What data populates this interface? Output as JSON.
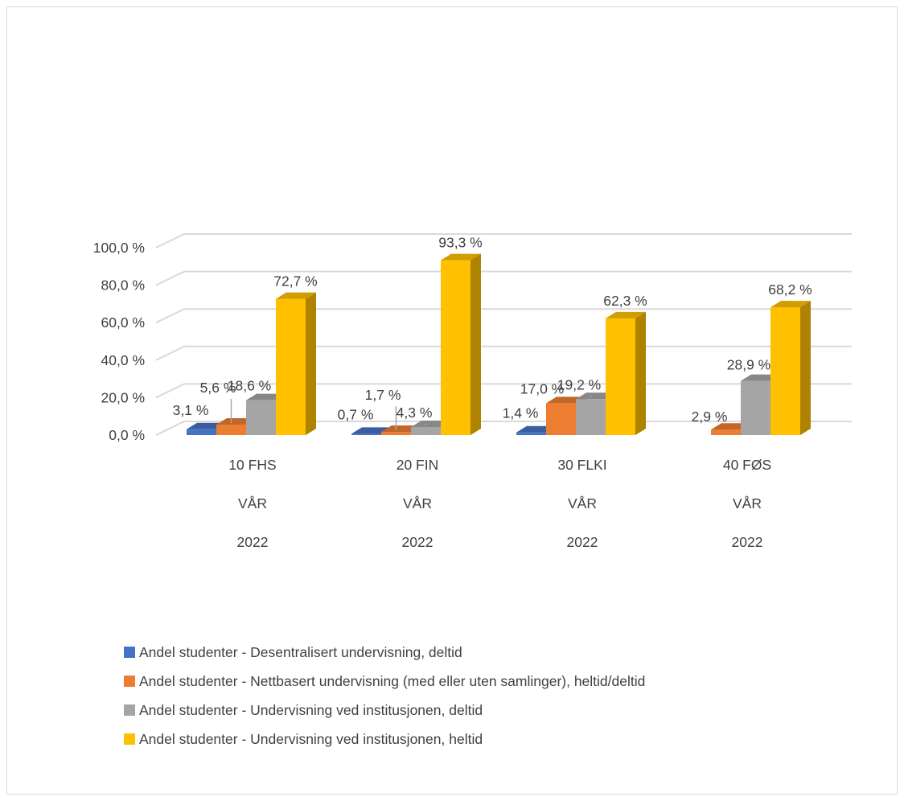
{
  "chart_data": {
    "type": "bar",
    "title": "",
    "xlabel": "",
    "ylabel": "",
    "ylim": [
      0,
      100
    ],
    "yticks": [
      "0,0 %",
      "20,0 %",
      "40,0 %",
      "60,0 %",
      "80,0 %",
      "100,0 %"
    ],
    "ytick_values": [
      0,
      20,
      40,
      60,
      80,
      100
    ],
    "categories": [
      [
        "10 FHS",
        "VÅR",
        "2022"
      ],
      [
        "20 FIN",
        "VÅR",
        "2022"
      ],
      [
        "30 FLKI",
        "VÅR",
        "2022"
      ],
      [
        "40 FØS",
        "VÅR",
        "2022"
      ]
    ],
    "series": [
      {
        "name": "Andel studenter - Desentralisert undervisning, deltid",
        "color": "#4472c4",
        "values": [
          3.1,
          0.7,
          1.4,
          null
        ],
        "labels": [
          "3,1 %",
          "0,7 %",
          "1,4 %",
          ""
        ]
      },
      {
        "name": "Andel studenter - Nettbasert undervisning (med eller uten samlinger), heltid/deltid",
        "color": "#ed7d31",
        "values": [
          5.6,
          1.7,
          17.0,
          2.9
        ],
        "labels": [
          "5,6 %",
          "1,7 %",
          "17,0 %",
          "2,9 %"
        ]
      },
      {
        "name": "Andel studenter - Undervisning ved institusjonen, deltid",
        "color": "#a5a5a5",
        "values": [
          18.6,
          4.3,
          19.2,
          28.9
        ],
        "labels": [
          "18,6 %",
          "4,3 %",
          "19,2 %",
          "28,9 %"
        ]
      },
      {
        "name": "Andel studenter - Undervisning ved institusjonen, heltid",
        "color": "#ffc000",
        "values": [
          72.7,
          93.3,
          62.3,
          68.2
        ],
        "labels": [
          "72,7 %",
          "93,3 %",
          "62,3 %",
          "68,2 %"
        ]
      }
    ],
    "grid": true,
    "legend_position": "bottom",
    "style": "3d-clustered-column"
  }
}
